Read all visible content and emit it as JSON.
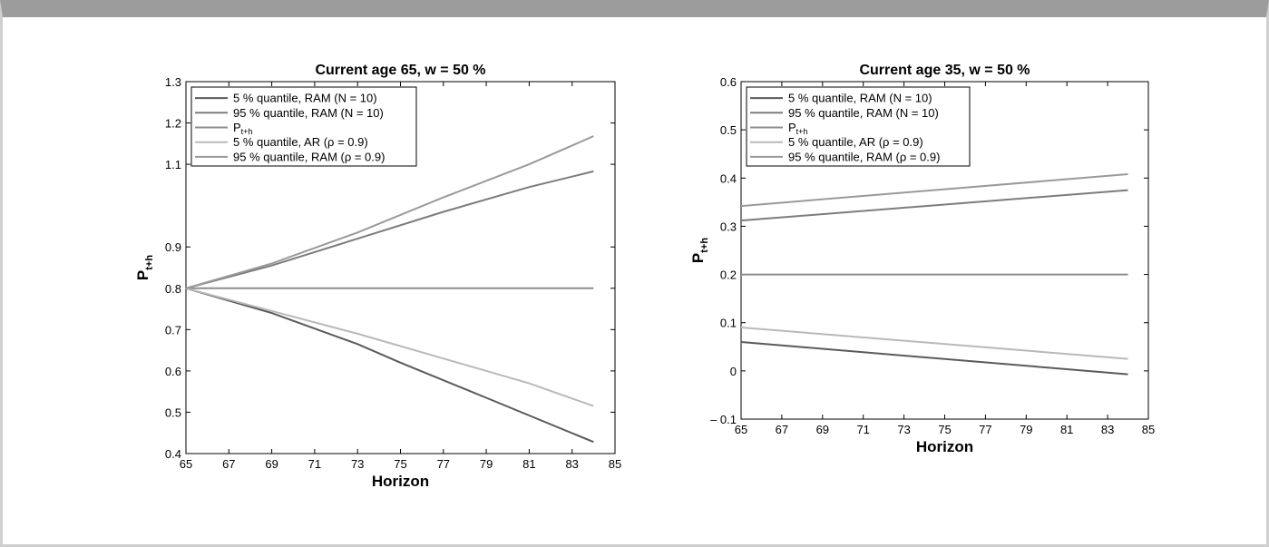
{
  "chart_data": [
    {
      "type": "line",
      "title": "Current age 65, w = 50 %",
      "xlabel": "Horizon",
      "ylabel": "P",
      "ylabel_sub": "t+h",
      "xlim": [
        65,
        85
      ],
      "ylim": [
        0.4,
        1.3
      ],
      "xticks": [
        65,
        67,
        69,
        71,
        73,
        75,
        77,
        79,
        81,
        83,
        85
      ],
      "yticks": [
        0.4,
        0.5,
        0.6,
        0.7,
        0.8,
        0.9,
        1.1,
        1.2,
        1.3
      ],
      "legend_placement": "top-left",
      "series": [
        {
          "name": "5 % quantile, RAM (N = 10)",
          "color": "#5a5a5a",
          "x": [
            65,
            69,
            73,
            75,
            79,
            84
          ],
          "y": [
            0.8,
            0.74,
            0.665,
            0.62,
            0.535,
            0.428
          ]
        },
        {
          "name": "95 % quantile, RAM (N = 10)",
          "color": "#7c7c7c",
          "x": [
            65,
            69,
            73,
            77,
            81,
            84
          ],
          "y": [
            0.8,
            0.855,
            0.92,
            0.985,
            1.045,
            1.083
          ]
        },
        {
          "name": "P",
          "name_sub": "t+h",
          "color": "#8e8e8e",
          "x": [
            65,
            84
          ],
          "y": [
            0.8,
            0.8
          ]
        },
        {
          "name": "5 % quantile, AR (ρ = 0.9)",
          "color": "#b9b9b9",
          "x": [
            65,
            69,
            73,
            77,
            81,
            84
          ],
          "y": [
            0.8,
            0.745,
            0.69,
            0.63,
            0.57,
            0.515
          ]
        },
        {
          "name": "95 % quantile, RAM (ρ = 0.9)",
          "color": "#9a9a9a",
          "x": [
            65,
            69,
            73,
            77,
            81,
            84
          ],
          "y": [
            0.8,
            0.86,
            0.935,
            1.02,
            1.1,
            1.168
          ]
        }
      ]
    },
    {
      "type": "line",
      "title": "Current age 35, w = 50 %",
      "xlabel": "Horizon",
      "ylabel": "P",
      "ylabel_sub": "t+h",
      "xlim": [
        65,
        85
      ],
      "ylim": [
        -0.1,
        0.6
      ],
      "xticks": [
        65,
        67,
        69,
        71,
        73,
        75,
        77,
        79,
        81,
        83,
        85
      ],
      "yticks": [
        -0.1,
        0,
        0.1,
        0.2,
        0.3,
        0.4,
        0.5,
        0.6
      ],
      "ytick_labels": [
        "– 0.1",
        "0",
        "0.1",
        "0.2",
        "0.3",
        "0.4",
        "0.5",
        "0.6"
      ],
      "legend_placement": "top-left",
      "series": [
        {
          "name": "5 % quantile, RAM (N = 10)",
          "color": "#5a5a5a",
          "x": [
            65,
            84
          ],
          "y": [
            0.06,
            -0.007
          ]
        },
        {
          "name": "95 % quantile, RAM (N = 10)",
          "color": "#7c7c7c",
          "x": [
            65,
            84
          ],
          "y": [
            0.312,
            0.375
          ]
        },
        {
          "name": "P",
          "name_sub": "t+h",
          "color": "#8e8e8e",
          "x": [
            65,
            84
          ],
          "y": [
            0.2,
            0.2
          ]
        },
        {
          "name": "5 % quantile, AR (ρ = 0.9)",
          "color": "#b9b9b9",
          "x": [
            65,
            84
          ],
          "y": [
            0.09,
            0.025
          ]
        },
        {
          "name": "95 % quantile, RAM (ρ = 0.9)",
          "color": "#9a9a9a",
          "x": [
            65,
            84
          ],
          "y": [
            0.342,
            0.408
          ]
        }
      ]
    }
  ]
}
